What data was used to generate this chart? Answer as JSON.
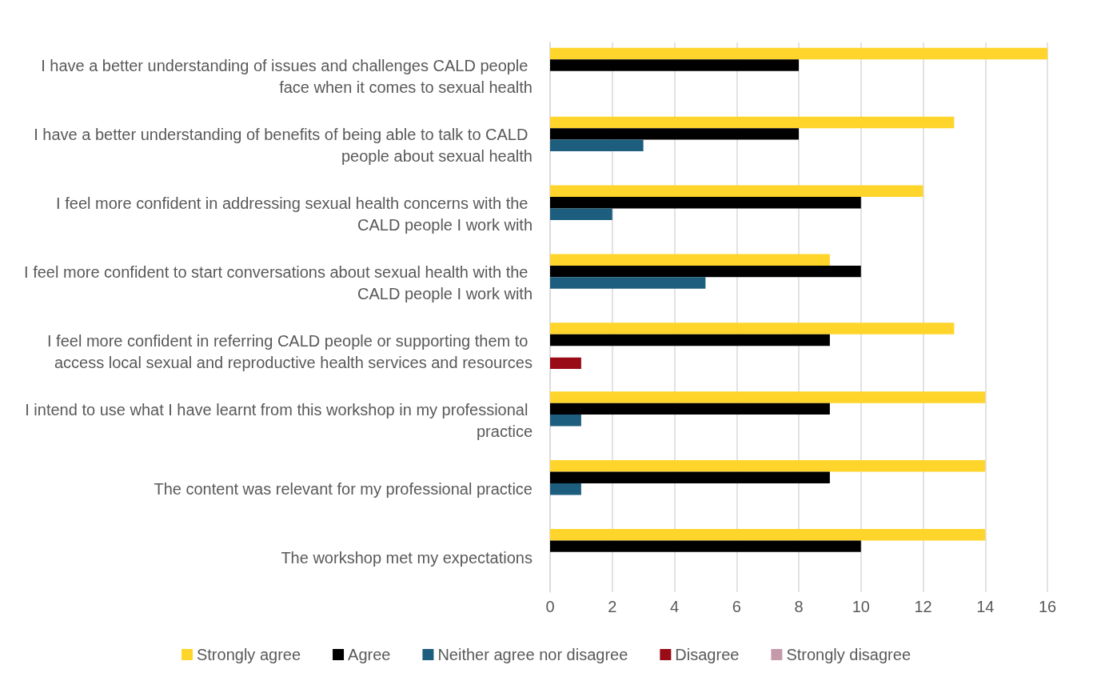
{
  "chart_data": {
    "type": "bar",
    "orientation": "horizontal",
    "categories": [
      "I have a better understanding of issues and challenges CALD people face when it comes to sexual health",
      "I have a better understanding of benefits of being able to talk to CALD people about sexual health",
      "I feel more confident in addressing sexual health concerns with the CALD people I work with",
      "I feel more confident to start conversations about sexual health with the CALD people I work with",
      "I feel more confident in referring CALD people or supporting them to access local sexual and reproductive health services and resources",
      "I intend to use what I have learnt from this workshop in my professional practice",
      "The content was relevant for my professional practice",
      "The workshop met my expectations"
    ],
    "series": [
      {
        "name": "Strongly agree",
        "color": "#ffd52b",
        "values": [
          16,
          13,
          12,
          9,
          13,
          14,
          14,
          14
        ]
      },
      {
        "name": "Agree",
        "color": "#000000",
        "values": [
          8,
          8,
          10,
          10,
          9,
          9,
          9,
          10
        ]
      },
      {
        "name": "Neither agree nor disagree",
        "color": "#1d5e7e",
        "values": [
          0,
          3,
          2,
          5,
          0,
          1,
          1,
          0
        ]
      },
      {
        "name": "Disagree",
        "color": "#990b16",
        "values": [
          0,
          0,
          0,
          0,
          1,
          0,
          0,
          0
        ]
      },
      {
        "name": "Strongly disagree",
        "color": "#c49aaa",
        "values": [
          0,
          0,
          0,
          0,
          0,
          0,
          0,
          0
        ]
      }
    ],
    "xlim": [
      0,
      16
    ],
    "xticks": [
      0,
      2,
      4,
      6,
      8,
      10,
      12,
      14,
      16
    ],
    "grid": "x",
    "legend": "bottom"
  }
}
